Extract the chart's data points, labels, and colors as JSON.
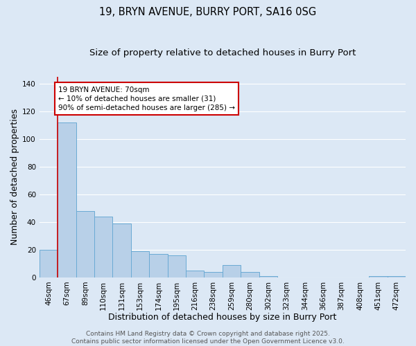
{
  "title": "19, BRYN AVENUE, BURRY PORT, SA16 0SG",
  "subtitle": "Size of property relative to detached houses in Burry Port",
  "xlabel": "Distribution of detached houses by size in Burry Port",
  "ylabel": "Number of detached properties",
  "categories": [
    "46sqm",
    "67sqm",
    "89sqm",
    "110sqm",
    "131sqm",
    "153sqm",
    "174sqm",
    "195sqm",
    "216sqm",
    "238sqm",
    "259sqm",
    "280sqm",
    "302sqm",
    "323sqm",
    "344sqm",
    "366sqm",
    "387sqm",
    "408sqm",
    "451sqm",
    "472sqm"
  ],
  "values": [
    20,
    112,
    48,
    44,
    39,
    19,
    17,
    16,
    5,
    4,
    9,
    4,
    1,
    0,
    0,
    0,
    0,
    0,
    1,
    1
  ],
  "bar_color": "#b8d0e8",
  "bar_edge_color": "#6aaad4",
  "background_color": "#dce8f5",
  "grid_color": "#ffffff",
  "vline_x": 0.5,
  "vline_color": "#cc0000",
  "ylim": [
    0,
    145
  ],
  "yticks": [
    0,
    20,
    40,
    60,
    80,
    100,
    120,
    140
  ],
  "annotation_text": "19 BRYN AVENUE: 70sqm\n← 10% of detached houses are smaller (31)\n90% of semi-detached houses are larger (285) →",
  "annotation_box_facecolor": "#ffffff",
  "annotation_box_edgecolor": "#cc0000",
  "footer": "Contains HM Land Registry data © Crown copyright and database right 2025.\nContains public sector information licensed under the Open Government Licence v3.0.",
  "title_fontsize": 10.5,
  "subtitle_fontsize": 9.5,
  "xlabel_fontsize": 9,
  "ylabel_fontsize": 9,
  "tick_fontsize": 7.5,
  "annotation_fontsize": 7.5,
  "footer_fontsize": 6.5
}
